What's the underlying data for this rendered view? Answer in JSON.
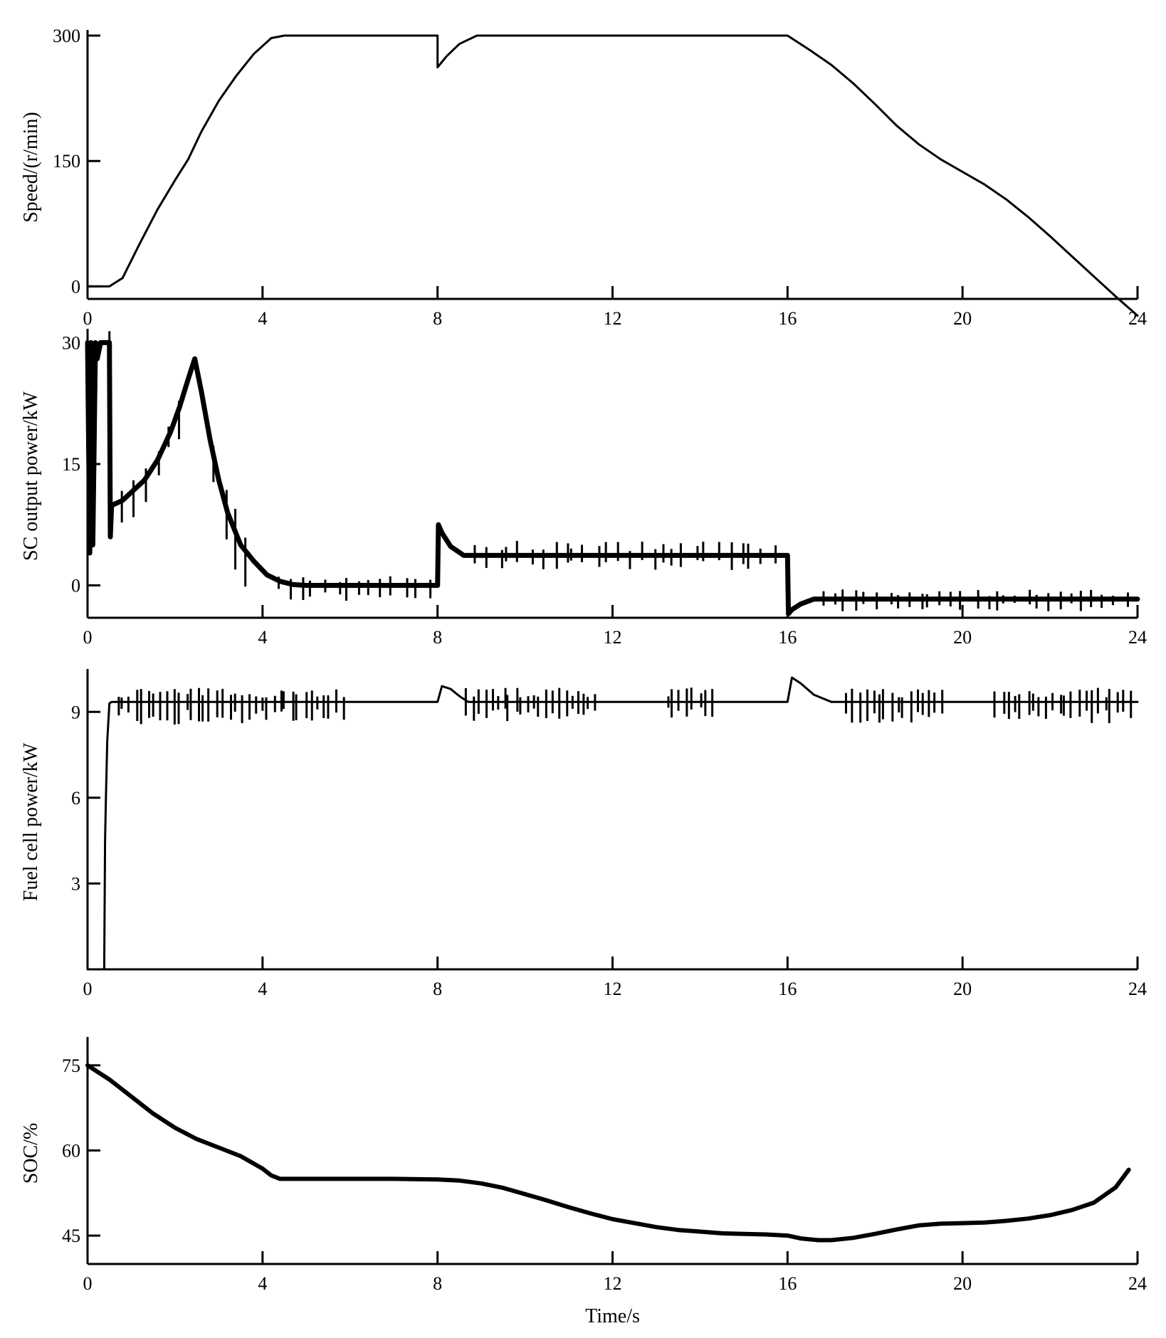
{
  "chart_data": [
    {
      "type": "line",
      "ylabel": "Speed/(r/min)",
      "xlabel": "",
      "xlim": [
        0,
        24
      ],
      "ylim": [
        -15,
        300
      ],
      "xticks": [
        "0",
        "4",
        "8",
        "12",
        "16",
        "20",
        "24"
      ],
      "yticks": [
        "0",
        "150",
        "300"
      ],
      "grid": false,
      "series": [
        {
          "x": [
            0,
            0.5,
            0.8,
            1.2,
            1.6,
            2.0,
            2.3,
            2.6,
            3.0,
            3.4,
            3.8,
            4.2,
            4.5,
            8.0,
            8.0,
            8.2,
            8.5,
            8.9,
            16.0,
            16.5,
            17.0,
            17.5,
            18.0,
            18.5,
            19.0,
            19.5,
            20.0,
            20.5,
            21.0,
            21.5,
            22.0,
            22.5,
            23.0,
            23.5,
            24.0
          ],
          "y": [
            0,
            0,
            10,
            52,
            92,
            127,
            152,
            185,
            222,
            252,
            278,
            297,
            300,
            300,
            262,
            275,
            290,
            300,
            300,
            283,
            265,
            243,
            218,
            192,
            170,
            152,
            137,
            122,
            104,
            83,
            60,
            36,
            12,
            -12,
            -35
          ]
        }
      ]
    },
    {
      "type": "line",
      "ylabel": "SC output power/kW",
      "xlabel": "",
      "xlim": [
        0,
        24
      ],
      "ylim": [
        -4,
        31
      ],
      "xticks": [
        "0",
        "4",
        "8",
        "12",
        "16",
        "20",
        "24"
      ],
      "yticks": [
        "0",
        "15",
        "30"
      ],
      "grid": false,
      "series": [
        {
          "x": [
            0,
            0.05,
            0.08,
            0.12,
            0.18,
            0.22,
            0.3,
            0.45,
            0.5,
            0.52,
            0.55,
            0.6,
            0.8,
            1.0,
            1.3,
            1.6,
            1.9,
            2.1,
            2.3,
            2.45,
            2.6,
            2.8,
            3.0,
            3.2,
            3.5,
            3.8,
            4.1,
            4.4,
            4.7,
            5.0,
            8.0,
            8.02,
            8.1,
            8.3,
            8.6,
            16.0,
            16.02,
            16.1,
            16.3,
            16.6,
            24.0
          ],
          "y": [
            30,
            4,
            30,
            5,
            30,
            28,
            30,
            30,
            30,
            6,
            10,
            10,
            10.5,
            11.5,
            13,
            15.5,
            19,
            22,
            25.5,
            28,
            24,
            18,
            13,
            9,
            5,
            3,
            1.3,
            0.5,
            0.1,
            0,
            0,
            7.5,
            6.5,
            4.8,
            3.7,
            3.7,
            -3.5,
            -3,
            -2.3,
            -1.7,
            -1.7
          ]
        }
      ]
    },
    {
      "type": "line",
      "ylabel": "Fuel cell power/kW",
      "xlabel": "",
      "xlim": [
        0,
        24
      ],
      "ylim": [
        0,
        10.3
      ],
      "xticks": [
        "0",
        "4",
        "8",
        "12",
        "16",
        "20",
        "24"
      ],
      "yticks": [
        "3",
        "6",
        "9"
      ],
      "grid": false,
      "series": [
        {
          "x": [
            0,
            0.38,
            0.4,
            0.42,
            0.45,
            0.5,
            0.55,
            8.0,
            8.1,
            8.3,
            8.5,
            8.7,
            16.0,
            16.1,
            16.3,
            16.6,
            17.0,
            24.0
          ],
          "y": [
            0,
            0,
            4.5,
            6,
            8,
            9.3,
            9.35,
            9.35,
            9.9,
            9.8,
            9.55,
            9.35,
            9.35,
            10.2,
            10,
            9.6,
            9.35,
            9.35
          ]
        }
      ]
    },
    {
      "type": "line",
      "ylabel": "SOC/%",
      "xlabel": "Time/s",
      "xlim": [
        0,
        24
      ],
      "ylim": [
        40,
        79
      ],
      "xticks": [
        "0",
        "4",
        "8",
        "12",
        "16",
        "20",
        "24"
      ],
      "yticks": [
        "45",
        "60",
        "75"
      ],
      "grid": false,
      "series": [
        {
          "x": [
            0,
            0.5,
            1.0,
            1.5,
            2.0,
            2.5,
            3.0,
            3.5,
            4.0,
            4.2,
            4.4,
            4.5,
            5,
            6,
            7,
            8,
            8.5,
            9,
            9.5,
            10,
            10.5,
            11,
            11.5,
            12,
            12.5,
            13,
            13.5,
            14,
            14.5,
            15,
            15.5,
            16,
            16.3,
            16.7,
            17,
            17.5,
            18,
            18.5,
            19,
            19.5,
            20,
            20.5,
            21,
            21.5,
            22,
            22.5,
            23,
            23.5,
            23.8
          ],
          "y": [
            75,
            72.5,
            69.5,
            66.5,
            64,
            62,
            60.5,
            59,
            56.8,
            55.6,
            55,
            55,
            55,
            55,
            55,
            54.9,
            54.7,
            54.2,
            53.4,
            52.3,
            51.2,
            50,
            48.9,
            47.9,
            47.2,
            46.5,
            46.0,
            45.7,
            45.4,
            45.3,
            45.2,
            45.0,
            44.5,
            44.2,
            44.2,
            44.6,
            45.3,
            46.1,
            46.8,
            47.1,
            47.2,
            47.3,
            47.6,
            48.0,
            48.6,
            49.5,
            50.8,
            53.5,
            56.6
          ]
        }
      ]
    }
  ]
}
